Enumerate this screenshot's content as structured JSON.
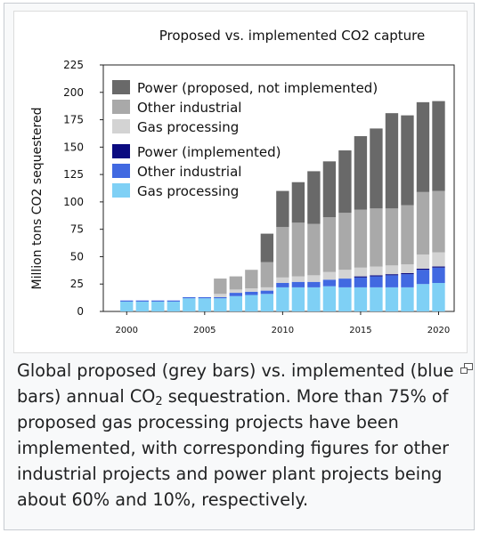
{
  "figure": {
    "caption": {
      "part1": "Global proposed (grey bars) vs. implemented (blue bars) annual CO",
      "subscript": "2",
      "part2": " sequestration. More than 75% of proposed gas processing projects have been implemented, with corresponding figures for other industrial projects and power plant projects being about 60% and 10%, respectively."
    },
    "magnify_icon": "magnify-clip-icon"
  },
  "chart_data": {
    "type": "bar",
    "stacked": true,
    "title": "Proposed vs. implemented CO2 capture",
    "ylabel": "Million tons CO2 sequestered",
    "xlabel": "",
    "ylim": [
      0,
      225
    ],
    "yticks": [
      0,
      25,
      50,
      75,
      100,
      125,
      150,
      175,
      200,
      225
    ],
    "xticks": [
      2000,
      2005,
      2010,
      2015,
      2020
    ],
    "grid": false,
    "legend_position": "top-left",
    "legend_groups": [
      [
        "Power (proposed, not implemented)",
        "Other industrial",
        "Gas processing"
      ],
      [
        "Power (implemented)",
        "Other industrial",
        "Gas processing"
      ]
    ],
    "categories": [
      2000,
      2001,
      2002,
      2003,
      2004,
      2005,
      2006,
      2007,
      2008,
      2009,
      2010,
      2011,
      2012,
      2013,
      2014,
      2015,
      2016,
      2017,
      2018,
      2019,
      2020
    ],
    "series": [
      {
        "name": "Gas processing",
        "group": "implemented",
        "color": "#7fd0f5",
        "values": [
          9,
          9,
          9,
          9,
          12,
          12,
          12,
          14,
          15,
          16,
          22,
          22,
          22,
          23,
          22,
          22,
          22,
          22,
          22,
          25,
          26
        ]
      },
      {
        "name": "Other industrial",
        "group": "implemented",
        "color": "#4169e1",
        "values": [
          1,
          1,
          1,
          1,
          1,
          1,
          1,
          3,
          3,
          3,
          4,
          5,
          5,
          6,
          8,
          9,
          10,
          11,
          12,
          13,
          14
        ]
      },
      {
        "name": "Power (implemented)",
        "group": "implemented",
        "color": "#0b0b80",
        "values": [
          0,
          0,
          0,
          0,
          0,
          0,
          0,
          0,
          0,
          0,
          0,
          0,
          0,
          0,
          0,
          1,
          1,
          1,
          1,
          1,
          1
        ]
      },
      {
        "name": "Gas processing",
        "group": "proposed",
        "color": "#d3d3d3",
        "values": [
          0,
          0,
          0,
          0,
          0,
          0,
          3,
          3,
          3,
          3,
          5,
          5,
          6,
          7,
          8,
          8,
          8,
          8,
          8,
          13,
          13
        ]
      },
      {
        "name": "Other industrial",
        "group": "proposed",
        "color": "#a9a9a9",
        "values": [
          0,
          0,
          0,
          0,
          0,
          0,
          14,
          12,
          17,
          23,
          46,
          49,
          47,
          50,
          52,
          53,
          53,
          52,
          54,
          57,
          56
        ]
      },
      {
        "name": "Power (proposed, not implemented)",
        "group": "proposed",
        "color": "#696969",
        "values": [
          0,
          0,
          0,
          0,
          0,
          0,
          0,
          0,
          0,
          26,
          33,
          37,
          48,
          51,
          57,
          67,
          73,
          87,
          82,
          82,
          82
        ]
      }
    ]
  }
}
